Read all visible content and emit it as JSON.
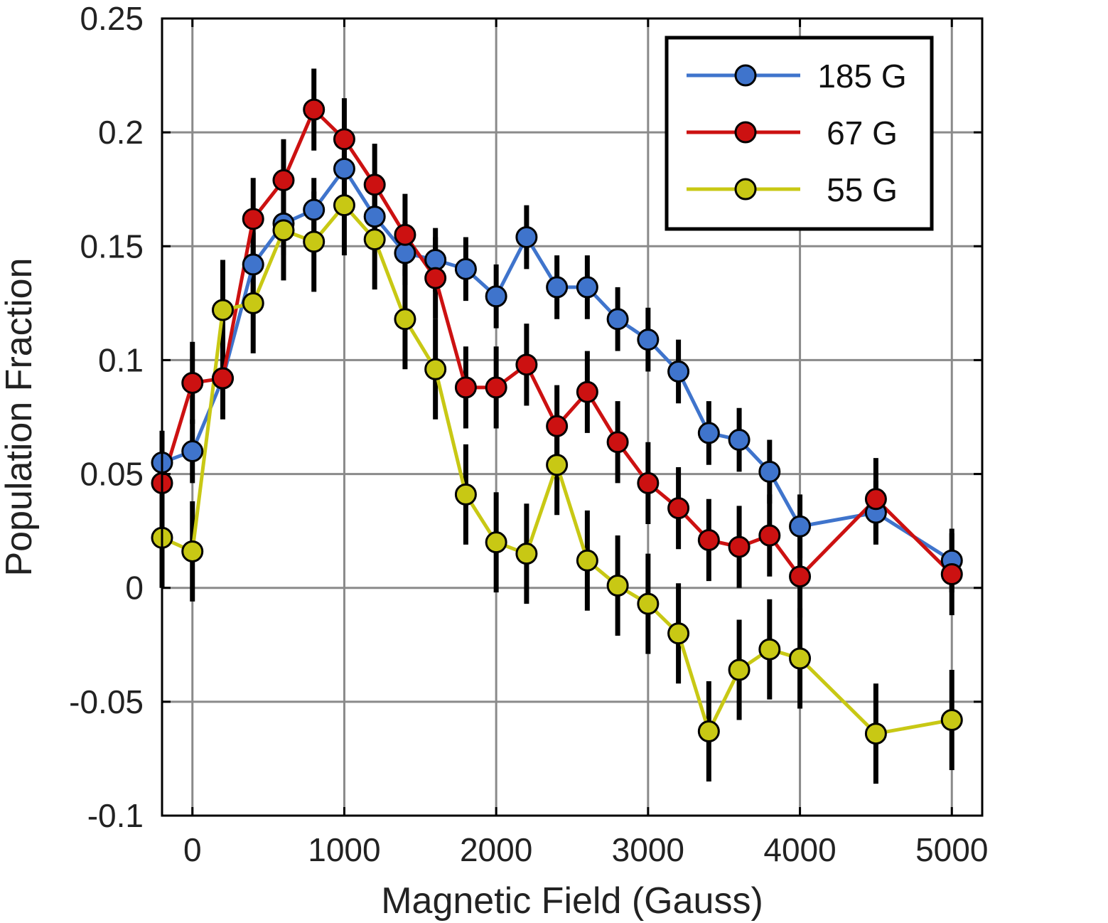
{
  "chart_data": {
    "type": "line",
    "xlabel": "Magnetic Field (Gauss)",
    "ylabel": "Population Fraction",
    "xlim": [
      -200,
      5200
    ],
    "ylim": [
      -0.1,
      0.25
    ],
    "xticks": [
      0,
      1000,
      2000,
      3000,
      4000,
      5000
    ],
    "xtick_labels": [
      "0",
      "1000",
      "2000",
      "3000",
      "4000",
      "5000"
    ],
    "yticks": [
      -0.1,
      -0.05,
      0,
      0.05,
      0.1,
      0.15,
      0.2,
      0.25
    ],
    "ytick_labels": [
      "-0.1",
      "-0.05",
      "0",
      "0.05",
      "0.1",
      "0.15",
      "0.2",
      "0.25"
    ],
    "grid": true,
    "legend_position": "top-right",
    "x": [
      -200,
      0,
      200,
      400,
      600,
      800,
      1000,
      1200,
      1400,
      1600,
      1800,
      2000,
      2200,
      2400,
      2600,
      2800,
      3000,
      3200,
      3400,
      3600,
      3800,
      4000,
      4500,
      5000
    ],
    "series": [
      {
        "name": "185 G",
        "color": "#3f74cc",
        "values": [
          0.055,
          0.06,
          0.092,
          0.142,
          0.16,
          0.166,
          0.184,
          0.163,
          0.147,
          0.144,
          0.14,
          0.128,
          0.154,
          0.132,
          0.132,
          0.118,
          0.109,
          0.095,
          0.068,
          0.065,
          0.051,
          0.027,
          0.033,
          0.012
        ],
        "errors": [
          0.014,
          0.014,
          0.014,
          0.014,
          0.014,
          0.014,
          0.014,
          0.014,
          0.014,
          0.014,
          0.014,
          0.014,
          0.014,
          0.014,
          0.014,
          0.014,
          0.014,
          0.014,
          0.014,
          0.014,
          0.014,
          0.014,
          0.014,
          0.014
        ]
      },
      {
        "name": "67 G",
        "color": "#cc1111",
        "values": [
          0.046,
          0.09,
          0.092,
          0.162,
          0.179,
          0.21,
          0.197,
          0.177,
          0.155,
          0.136,
          0.088,
          0.088,
          0.098,
          0.071,
          0.086,
          0.064,
          0.046,
          0.035,
          0.021,
          0.018,
          0.023,
          0.005,
          0.039,
          0.006
        ],
        "errors": [
          0.018,
          0.018,
          0.018,
          0.018,
          0.018,
          0.018,
          0.018,
          0.018,
          0.018,
          0.018,
          0.018,
          0.018,
          0.018,
          0.018,
          0.018,
          0.018,
          0.018,
          0.018,
          0.018,
          0.018,
          0.018,
          0.018,
          0.018,
          0.018
        ]
      },
      {
        "name": "55 G",
        "color": "#c8c814",
        "values": [
          0.022,
          0.016,
          0.122,
          0.125,
          0.157,
          0.152,
          0.168,
          0.153,
          0.118,
          0.096,
          0.041,
          0.02,
          0.015,
          0.054,
          0.012,
          0.001,
          -0.007,
          -0.02,
          -0.063,
          -0.036,
          -0.027,
          -0.031,
          -0.064,
          -0.058
        ],
        "errors": [
          0.022,
          0.022,
          0.022,
          0.022,
          0.022,
          0.022,
          0.022,
          0.022,
          0.022,
          0.022,
          0.022,
          0.022,
          0.022,
          0.022,
          0.022,
          0.022,
          0.022,
          0.022,
          0.022,
          0.022,
          0.022,
          0.022,
          0.022,
          0.022
        ]
      }
    ]
  }
}
